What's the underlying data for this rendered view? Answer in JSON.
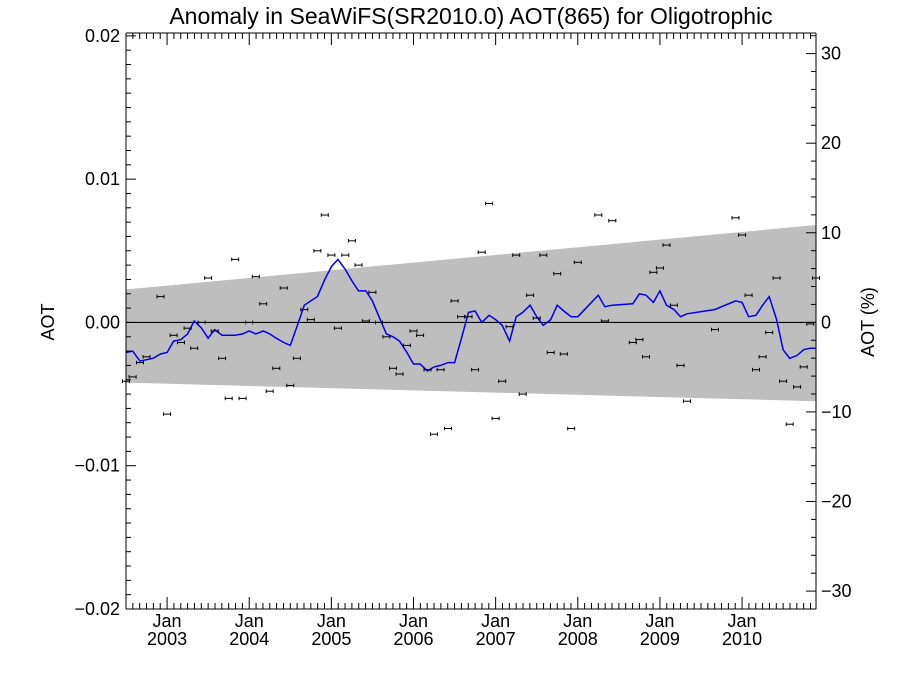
{
  "chart_data": {
    "type": "line",
    "title": "Anomaly in SeaWiFS(SR2010.0) AOT(865) for Oligotrophic",
    "ylabel": "AOT",
    "y2label": "AOT (%)",
    "xlabel": "",
    "xlim": [
      2002.5,
      2010.9
    ],
    "ylim": [
      -0.02,
      0.0202
    ],
    "y2lim": [
      -32,
      32.3
    ],
    "x_ticks": [
      {
        "x": 2003.0,
        "month": "Jan",
        "year": "2003"
      },
      {
        "x": 2004.0,
        "month": "Jan",
        "year": "2004"
      },
      {
        "x": 2005.0,
        "month": "Jan",
        "year": "2005"
      },
      {
        "x": 2006.0,
        "month": "Jan",
        "year": "2006"
      },
      {
        "x": 2007.0,
        "month": "Jan",
        "year": "2007"
      },
      {
        "x": 2008.0,
        "month": "Jan",
        "year": "2008"
      },
      {
        "x": 2009.0,
        "month": "Jan",
        "year": "2009"
      },
      {
        "x": 2010.0,
        "month": "Jan",
        "year": "2010"
      }
    ],
    "y_ticks": [
      {
        "v": 0.02,
        "label": "0.02"
      },
      {
        "v": 0.01,
        "label": "0.01"
      },
      {
        "v": 0.0,
        "label": "0.00"
      },
      {
        "v": -0.01,
        "label": "−0.01"
      },
      {
        "v": -0.02,
        "label": "−0.02"
      }
    ],
    "y2_ticks": [
      {
        "v": 30,
        "label": "30"
      },
      {
        "v": 20,
        "label": "20"
      },
      {
        "v": 10,
        "label": "10"
      },
      {
        "v": 0,
        "label": "0"
      },
      {
        "v": -10,
        "label": "−10"
      },
      {
        "v": -20,
        "label": "−20"
      },
      {
        "v": -30,
        "label": "−30"
      }
    ],
    "band": {
      "x": [
        2002.5,
        2010.9
      ],
      "upper": [
        0.0023,
        0.0068
      ],
      "lower": [
        -0.0042,
        -0.0055
      ],
      "color": "#bebebe"
    },
    "zero_line": 0.0,
    "series": [
      {
        "kind": "line",
        "color": "#0000ee",
        "x": [
          2002.5,
          2002.58,
          2002.67,
          2002.75,
          2002.83,
          2002.92,
          2003.0,
          2003.08,
          2003.17,
          2003.25,
          2003.33,
          2003.42,
          2003.5,
          2003.58,
          2003.67,
          2003.75,
          2003.83,
          2003.92,
          2004.0,
          2004.08,
          2004.17,
          2004.25,
          2004.33,
          2004.42,
          2004.5,
          2004.58,
          2004.67,
          2004.75,
          2004.83,
          2004.92,
          2005.0,
          2005.08,
          2005.17,
          2005.25,
          2005.33,
          2005.42,
          2005.5,
          2005.58,
          2005.67,
          2005.75,
          2005.83,
          2005.92,
          2006.0,
          2006.08,
          2006.17,
          2006.25,
          2006.33,
          2006.42,
          2006.5,
          2006.58,
          2006.67,
          2006.75,
          2006.83,
          2006.92,
          2007.0,
          2007.08,
          2007.17,
          2007.25,
          2007.33,
          2007.42,
          2007.5,
          2007.58,
          2007.67,
          2007.75,
          2007.83,
          2007.92,
          2008.0,
          2008.25,
          2008.33,
          2008.42,
          2008.67,
          2008.75,
          2008.83,
          2008.92,
          2009.0,
          2009.08,
          2009.17,
          2009.25,
          2009.33,
          2009.67,
          2009.92,
          2010.0,
          2010.08,
          2010.17,
          2010.25,
          2010.33,
          2010.42,
          2010.5,
          2010.58,
          2010.67,
          2010.75,
          2010.83,
          2010.9
        ],
        "y": [
          -0.0021,
          -0.002,
          -0.0027,
          -0.0026,
          -0.0025,
          -0.0022,
          -0.0021,
          -0.0013,
          -0.0012,
          -0.0008,
          0.0001,
          -0.0004,
          -0.0011,
          -0.0005,
          -0.0009,
          -0.0009,
          -0.0009,
          -0.0008,
          -0.0006,
          -0.0008,
          -0.0006,
          -0.0008,
          -0.0011,
          -0.0014,
          -0.0016,
          -0.0003,
          0.0012,
          0.0015,
          0.0018,
          0.003,
          0.0039,
          0.0044,
          0.0037,
          0.0029,
          0.0022,
          0.0022,
          0.0015,
          0.0004,
          -0.0008,
          -0.001,
          -0.0013,
          -0.0021,
          -0.0029,
          -0.0029,
          -0.0034,
          -0.0031,
          -0.003,
          -0.0028,
          -0.0028,
          -0.0012,
          0.0007,
          0.0008,
          0.0,
          0.0005,
          0.0002,
          -0.0002,
          -0.0013,
          0.0004,
          0.0007,
          0.0012,
          0.0004,
          -0.0002,
          0.0002,
          0.0012,
          0.0008,
          0.0004,
          0.0004,
          0.0019,
          0.0011,
          0.0012,
          0.0013,
          0.002,
          0.0019,
          0.0014,
          0.0022,
          0.0012,
          0.0009,
          0.0004,
          0.0006,
          0.0009,
          0.0015,
          0.0014,
          0.0004,
          0.0005,
          0.0012,
          0.0018,
          0.0002,
          -0.0019,
          -0.0025,
          -0.0023,
          -0.0019,
          -0.0018,
          -0.0018
        ]
      },
      {
        "kind": "points",
        "color": "#000000",
        "x": [
          2002.5,
          2002.58,
          2002.67,
          2002.75,
          2002.92,
          2003.0,
          2003.08,
          2003.17,
          2003.25,
          2003.33,
          2003.42,
          2003.5,
          2003.58,
          2003.67,
          2003.75,
          2003.83,
          2003.92,
          2004.0,
          2004.08,
          2004.17,
          2004.25,
          2004.33,
          2004.42,
          2004.5,
          2004.58,
          2004.67,
          2004.75,
          2004.83,
          2004.92,
          2005.0,
          2005.08,
          2005.17,
          2005.25,
          2005.33,
          2005.42,
          2005.5,
          2005.58,
          2005.67,
          2005.75,
          2005.83,
          2005.92,
          2006.0,
          2006.08,
          2006.17,
          2006.25,
          2006.33,
          2006.42,
          2006.5,
          2006.58,
          2006.67,
          2006.75,
          2006.83,
          2006.92,
          2007.0,
          2007.08,
          2007.17,
          2007.25,
          2007.33,
          2007.42,
          2007.5,
          2007.58,
          2007.67,
          2007.75,
          2007.83,
          2007.92,
          2008.0,
          2008.25,
          2008.33,
          2008.42,
          2008.67,
          2008.75,
          2008.83,
          2008.92,
          2009.0,
          2009.08,
          2009.17,
          2009.25,
          2009.33,
          2009.67,
          2009.92,
          2010.0,
          2010.08,
          2010.17,
          2010.25,
          2010.33,
          2010.42,
          2010.5,
          2010.58,
          2010.67,
          2010.75,
          2010.83,
          2010.9
        ],
        "y": [
          -0.0041,
          -0.0038,
          -0.0028,
          -0.0024,
          0.0018,
          -0.0064,
          -0.0009,
          -0.0014,
          -0.0004,
          -0.0018,
          0.0,
          0.0031,
          -0.0006,
          -0.0025,
          -0.0053,
          0.0044,
          -0.0053,
          0.0,
          0.0032,
          0.0013,
          -0.0048,
          -0.0032,
          0.0024,
          -0.0044,
          -0.0025,
          0.0009,
          0.0002,
          0.005,
          0.0075,
          0.0047,
          -0.0004,
          0.0047,
          0.0057,
          0.004,
          0.0001,
          0.0021,
          0.0,
          -0.001,
          -0.0032,
          -0.0036,
          -0.0016,
          -0.0006,
          -0.0009,
          -0.0033,
          -0.0078,
          -0.0033,
          -0.0074,
          0.0015,
          0.0004,
          0.0004,
          -0.0033,
          0.0049,
          0.0083,
          -0.0067,
          -0.0041,
          -0.0003,
          0.0047,
          -0.005,
          0.0019,
          0.0003,
          0.0047,
          -0.0021,
          0.0034,
          -0.0022,
          -0.0074,
          0.0042,
          0.0075,
          0.0001,
          0.0071,
          -0.0014,
          -0.0012,
          -0.0024,
          0.0035,
          0.0038,
          0.0054,
          0.0012,
          -0.003,
          -0.0055,
          -0.0005,
          0.0073,
          0.0061,
          0.0019,
          -0.0033,
          -0.0024,
          -0.0007,
          0.0031,
          -0.0041,
          -0.0071,
          -0.0045,
          -0.0031,
          -0.0001,
          0.0031
        ]
      }
    ]
  }
}
